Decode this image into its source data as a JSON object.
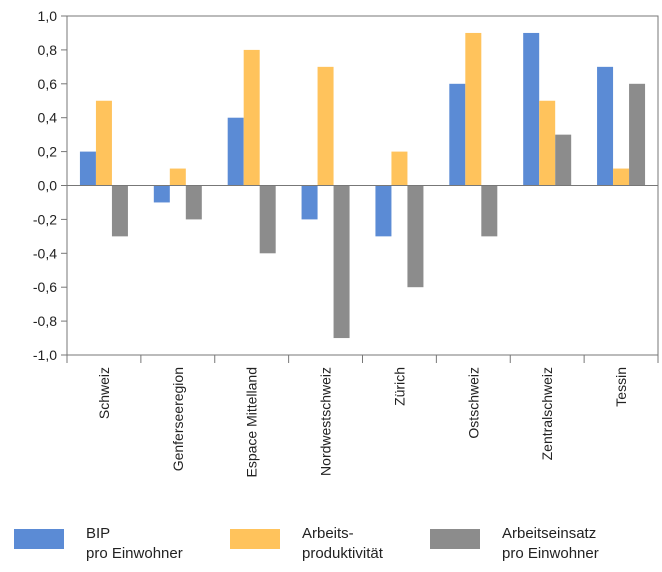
{
  "chart_data": {
    "type": "bar",
    "categories": [
      "Schweiz",
      "Genferseeregion",
      "Espace Mittelland",
      "Nordwestschweiz",
      "Zürich",
      "Ostschweiz",
      "Zentralschweiz",
      "Tessin"
    ],
    "series": [
      {
        "name": "BIP pro Einwohner",
        "color": "#5B8BD5",
        "values": [
          0.2,
          -0.1,
          0.4,
          -0.2,
          -0.3,
          0.6,
          0.9,
          0.7
        ]
      },
      {
        "name": "Arbeits-produktivität",
        "color": "#FFC35C",
        "values": [
          0.5,
          0.1,
          0.8,
          0.7,
          0.2,
          0.9,
          0.5,
          0.1
        ]
      },
      {
        "name": "Arbeitseinsatz pro Einwohner",
        "color": "#8C8C8C",
        "values": [
          -0.3,
          -0.2,
          -0.4,
          -0.9,
          -0.6,
          -0.3,
          0.3,
          0.6
        ]
      }
    ],
    "ylim": [
      -1.0,
      1.0
    ],
    "yticks": [
      "1,0",
      "0,8",
      "0,6",
      "0,4",
      "0,2",
      "0,0",
      "-0,2",
      "-0,4",
      "-0,6",
      "-0,8",
      "-1,0"
    ],
    "ytick_values": [
      1.0,
      0.8,
      0.6,
      0.4,
      0.2,
      0.0,
      -0.2,
      -0.4,
      -0.6,
      -0.8,
      -1.0
    ],
    "grid": false,
    "legend_position": "bottom",
    "title": "",
    "xlabel": "",
    "ylabel": ""
  },
  "legend": [
    {
      "line1": "BIP",
      "line2": "pro Einwohner",
      "color": "#5B8BD5"
    },
    {
      "line1": "Arbeits-",
      "line2": "produktivität",
      "color": "#FFC35C"
    },
    {
      "line1": "Arbeitseinsatz",
      "line2": "pro Einwohner",
      "color": "#8C8C8C"
    }
  ]
}
